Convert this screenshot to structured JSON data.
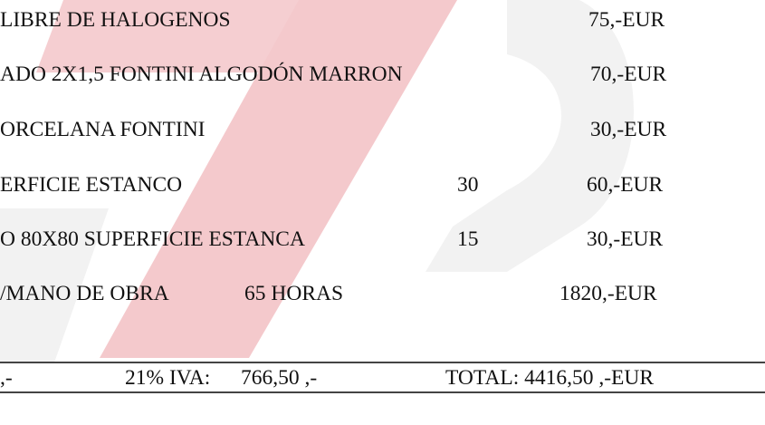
{
  "rows": [
    {
      "description": "LIBRE DE HALOGENOS",
      "qty": "",
      "price": "75,-EUR"
    },
    {
      "description": "ADO 2X1,5 FONTINI ALGODÓN MARRON",
      "qty": "",
      "price": "70,-EUR"
    },
    {
      "description": "ORCELANA FONTINI",
      "qty": "",
      "price": "30,-EUR"
    },
    {
      "description": "ERFICIE ESTANCO",
      "qty": "30",
      "price": "60,-EUR"
    },
    {
      "description": "O 80X80 SUPERFICIE ESTANCA",
      "qty": "15",
      "price": "30,-EUR"
    },
    {
      "description": "/MANO DE OBRA",
      "qty": "65 HORAS",
      "price": "1820,-EUR"
    }
  ],
  "totals": {
    "subtotal_fragment": ",-",
    "iva_label": "21% IVA:",
    "iva_value": "766,50 ,-",
    "total": "TOTAL: 4416,50 ,-EUR"
  },
  "watermark": {
    "colors": {
      "red": "#f4c9cc",
      "gray": "#f2f2f2"
    }
  }
}
